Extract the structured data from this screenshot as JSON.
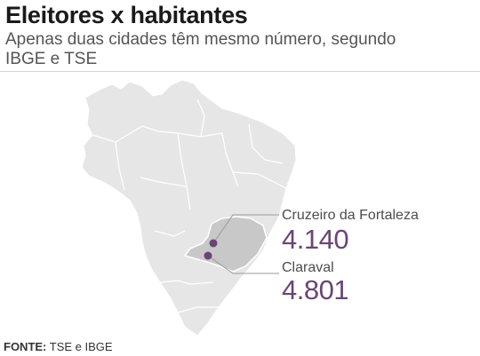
{
  "header": {
    "title": "Eleitores x habitantes",
    "subtitle": "Apenas duas cidades têm mesmo número, segundo IBGE e TSE"
  },
  "map": {
    "country": "Brasil",
    "highlighted_state": "Minas Gerais",
    "colors": {
      "country_fill": "#e6e6e6",
      "state_fill": "#c8c8c8",
      "borders": "#ffffff",
      "marker": "#6b4575",
      "leader": "#9a9a9a"
    },
    "cities": [
      {
        "name": "Cruzeiro da Fortaleza",
        "value": "4.140"
      },
      {
        "name": "Claraval",
        "value": "4.801"
      }
    ]
  },
  "footer": {
    "source_label": "FONTE:",
    "source_text": " TSE e IBGE"
  }
}
